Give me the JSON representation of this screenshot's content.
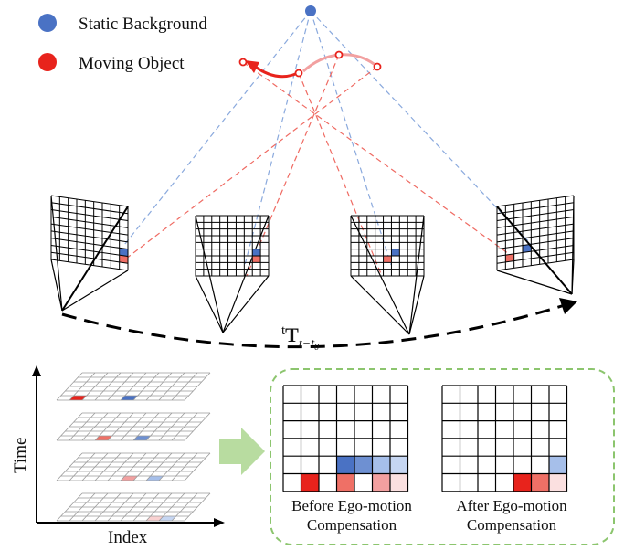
{
  "legend": {
    "static_label": "Static Background",
    "moving_label": "Moving Object"
  },
  "colors": {
    "static": "#4a72c4",
    "moving": "#e8231c",
    "static_dash": "#8aa9dd",
    "moving_dash": "#ef6a62",
    "grid": "#000000",
    "panel_border": "#8cc56e",
    "arrow_fill": "#b8dca0",
    "moving_trail": "#f2a0a0"
  },
  "trajectory": {
    "label_main": "t",
    "label_bold": "T",
    "label_sub": "t−t",
    "label_sub2": "0"
  },
  "axes": {
    "y_label": "Time",
    "x_label": "Index"
  },
  "panels": {
    "before": {
      "caption_line1": "Before Ego-motion",
      "caption_line2": "Compensation"
    },
    "after": {
      "caption_line1": "After Ego-motion",
      "caption_line2": "Compensation"
    }
  }
}
